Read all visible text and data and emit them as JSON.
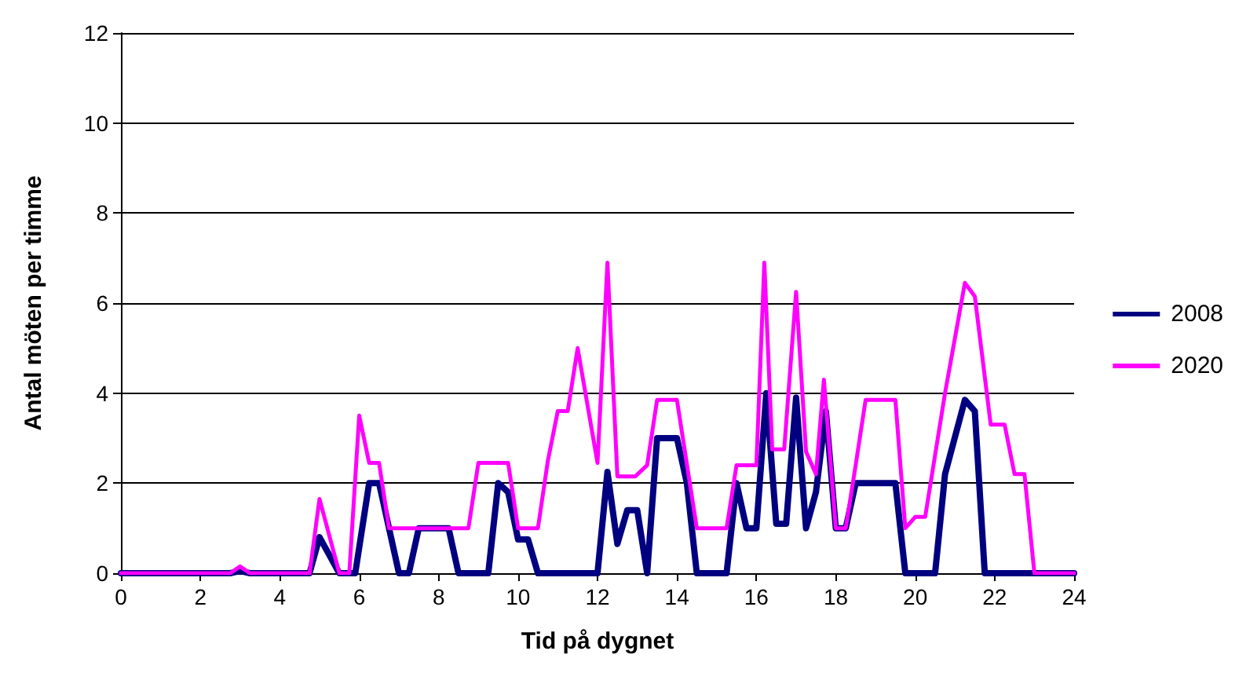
{
  "chart_data": {
    "type": "line",
    "xlabel": "Tid på dygnet",
    "ylabel": "Antal möten per timme",
    "xlim": [
      0,
      24
    ],
    "xticks": [
      0,
      2,
      4,
      6,
      8,
      10,
      12,
      14,
      16,
      18,
      20,
      22,
      24
    ],
    "ylim": [
      0,
      12
    ],
    "yticks": [
      0,
      2,
      4,
      6,
      8,
      10,
      12
    ],
    "grid": "y",
    "legend": "right",
    "marker": "none",
    "line_style": "solid",
    "series": [
      {
        "name": "2008",
        "color": "#000080",
        "x": [
          0,
          2.75,
          3,
          3.25,
          4.75,
          5,
          5.5,
          5.9,
          6.25,
          6.5,
          7,
          7.25,
          7.5,
          8.25,
          8.5,
          9.25,
          9.5,
          9.75,
          10,
          10.25,
          10.5,
          12,
          12.25,
          12.5,
          12.75,
          13,
          13.25,
          13.5,
          14,
          14.25,
          14.5,
          15.25,
          15.5,
          15.75,
          16,
          16.25,
          16.5,
          16.75,
          17,
          17.25,
          17.5,
          17.75,
          18,
          18.25,
          18.5,
          19.5,
          19.75,
          20.5,
          20.75,
          21.25,
          21.5,
          21.75,
          24
        ],
        "values": [
          0,
          0,
          0.05,
          0,
          0,
          0.8,
          0,
          0,
          2,
          2,
          0,
          0,
          1,
          1,
          0,
          0,
          2,
          1.8,
          0.75,
          0.75,
          0,
          0,
          2.25,
          0.65,
          1.4,
          1.4,
          0,
          3,
          3,
          2,
          0,
          0,
          2,
          1,
          1,
          4,
          1.1,
          1.1,
          3.9,
          1,
          1.8,
          3.6,
          1,
          1,
          2,
          2,
          0,
          0,
          2.2,
          3.85,
          3.6,
          0,
          0
        ]
      },
      {
        "name": "2020",
        "color": "#ff00ff",
        "x": [
          0,
          2.75,
          3,
          3.25,
          4.75,
          5,
          5.5,
          5.75,
          6,
          6.25,
          6.5,
          6.75,
          8.75,
          9,
          9.75,
          10,
          10.5,
          10.75,
          11,
          11.25,
          11.5,
          12,
          12.25,
          12.5,
          12.95,
          13.25,
          13.5,
          14,
          14.5,
          15.25,
          15.5,
          16,
          16.2,
          16.4,
          16.7,
          17,
          17.25,
          17.5,
          17.7,
          18,
          18.25,
          18.5,
          18.75,
          19.5,
          19.75,
          20,
          20.25,
          20.75,
          21.25,
          21.5,
          21.9,
          22.25,
          22.5,
          22.75,
          23,
          24
        ],
        "values": [
          0,
          0,
          0.15,
          0,
          0,
          1.65,
          0,
          0,
          3.5,
          2.45,
          2.45,
          1,
          1,
          2.45,
          2.45,
          1,
          1,
          2.5,
          3.6,
          3.6,
          5,
          2.45,
          6.9,
          2.15,
          2.15,
          2.4,
          3.85,
          3.85,
          1,
          1,
          2.4,
          2.4,
          6.9,
          2.75,
          2.75,
          6.25,
          2.7,
          2.2,
          4.3,
          1,
          1,
          2.4,
          3.85,
          3.85,
          1,
          1.25,
          1.25,
          4,
          6.45,
          6.15,
          3.3,
          3.3,
          2.2,
          2.2,
          0,
          0
        ]
      }
    ]
  }
}
